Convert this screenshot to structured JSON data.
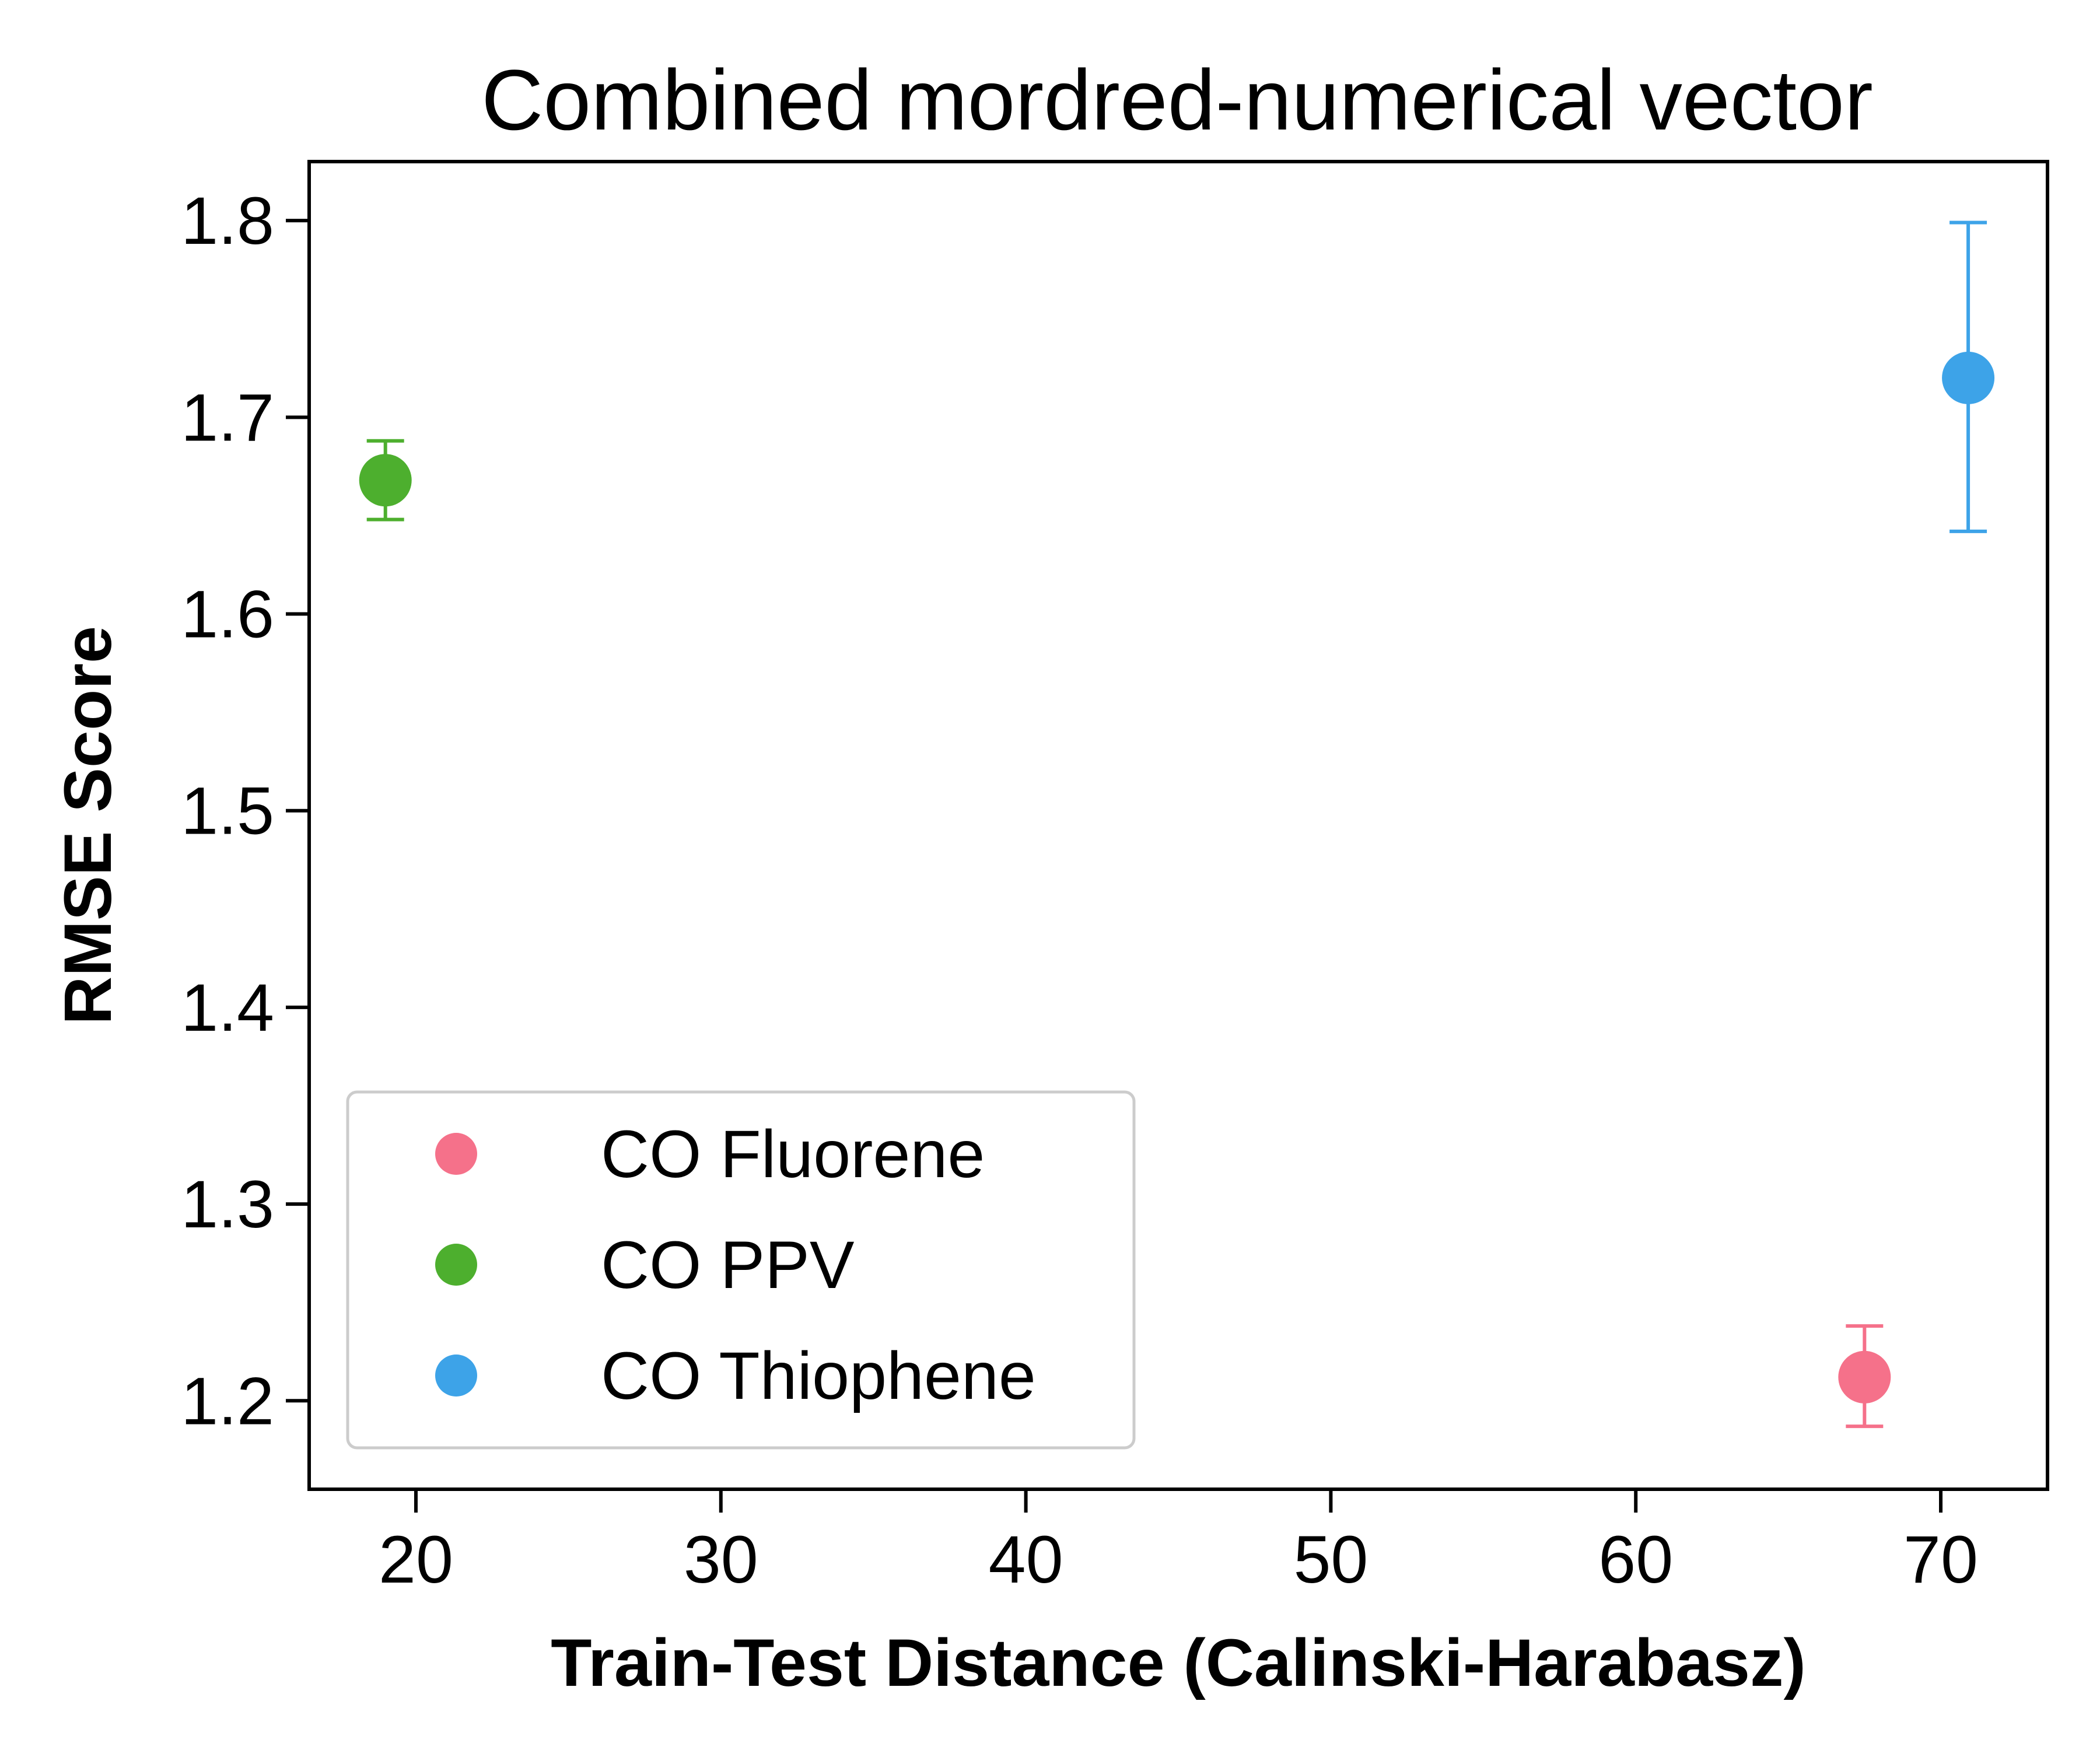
{
  "chart_data": {
    "type": "scatter",
    "title": "Combined mordred-numerical vector",
    "xlabel": "Train-Test Distance (Calinski-Harabasz)",
    "ylabel": "RMSE Score",
    "xlim": [
      16.5,
      73.5
    ],
    "ylim": [
      1.155,
      1.83
    ],
    "xticks": [
      20,
      30,
      40,
      50,
      60,
      70
    ],
    "yticks": [
      1.2,
      1.3,
      1.4,
      1.5,
      1.6,
      1.7,
      1.8
    ],
    "grid": false,
    "legend_position": "lower-left",
    "series": [
      {
        "name": "CO Fluorene",
        "color": "#f5718a",
        "x": 67.5,
        "y": 1.212,
        "yerr_low": 1.187,
        "yerr_high": 1.238
      },
      {
        "name": "CO PPV",
        "color": "#4daf2e",
        "x": 19.0,
        "y": 1.668,
        "yerr_low": 1.648,
        "yerr_high": 1.688
      },
      {
        "name": "CO Thiophene",
        "color": "#3da3e8",
        "x": 70.9,
        "y": 1.72,
        "yerr_low": 1.642,
        "yerr_high": 1.799
      }
    ]
  }
}
